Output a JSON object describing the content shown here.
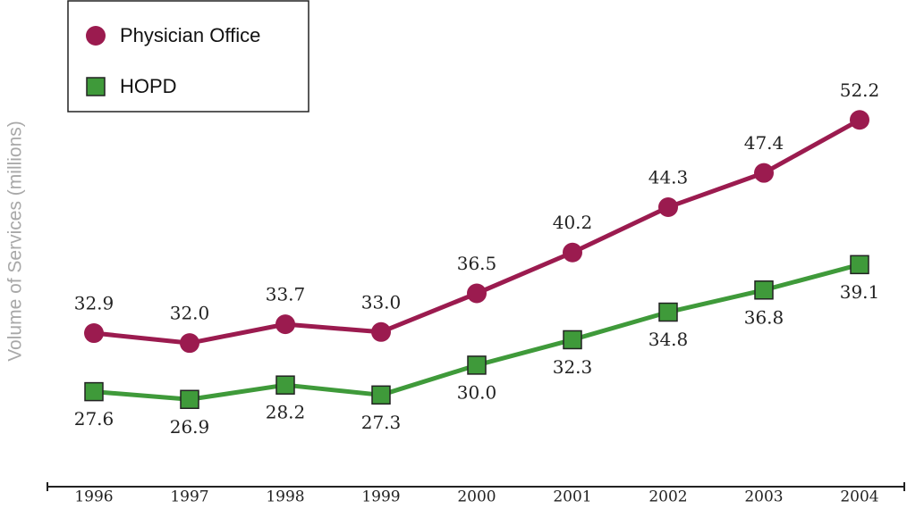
{
  "chart_data": {
    "type": "line",
    "y_label": "Volume of Services (millions)",
    "categories": [
      "1996",
      "1997",
      "1998",
      "1999",
      "2000",
      "2001",
      "2002",
      "2003",
      "2004"
    ],
    "series": [
      {
        "name": "Physician Office",
        "color": "#9b1b4f",
        "marker": "circle",
        "values": [
          32.9,
          32.0,
          33.7,
          33.0,
          36.5,
          40.2,
          44.3,
          47.4,
          52.2
        ],
        "value_labels": [
          "32.9",
          "32.0",
          "33.7",
          "33.0",
          "36.5",
          "40.2",
          "44.3",
          "47.4",
          "52.2"
        ]
      },
      {
        "name": "HOPD",
        "color": "#3f9a3a",
        "marker": "square",
        "values": [
          27.6,
          26.9,
          28.2,
          27.3,
          30.0,
          32.3,
          34.8,
          36.8,
          39.1
        ],
        "value_labels": [
          "27.6",
          "26.9",
          "28.2",
          "27.3",
          "30.0",
          "32.3",
          "34.8",
          "36.8",
          "39.1"
        ]
      }
    ],
    "ylim": [
      19,
      54
    ],
    "legend": "upper left"
  }
}
